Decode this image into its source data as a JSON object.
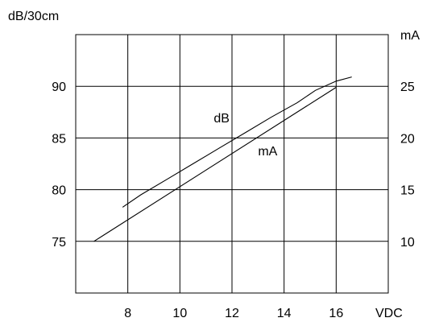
{
  "chart_data": {
    "type": "line",
    "y_left_label": "dB/30cm",
    "y_right_label": "mA",
    "xlabel": "VDC",
    "xlim": [
      6,
      18
    ],
    "ylim_left": [
      70,
      95
    ],
    "ylim_right": [
      5,
      30
    ],
    "x_ticks": [
      8,
      10,
      12,
      14,
      16
    ],
    "y_left_ticks": [
      75,
      80,
      85,
      90
    ],
    "y_right_ticks": [
      10,
      15,
      20,
      25
    ],
    "grid": true,
    "series": [
      {
        "name": "dB",
        "axis": "left",
        "x": [
          7.8,
          8.5,
          9.5,
          10.5,
          11.5,
          12.5,
          13.5,
          14.5,
          15.2,
          16.0,
          16.6
        ],
        "values": [
          78.3,
          79.5,
          81.0,
          82.5,
          84.0,
          85.5,
          87.0,
          88.4,
          89.6,
          90.5,
          90.9
        ]
      },
      {
        "name": "mA",
        "axis": "right",
        "x": [
          6.7,
          16.0
        ],
        "values": [
          10.0,
          24.9
        ]
      }
    ]
  }
}
